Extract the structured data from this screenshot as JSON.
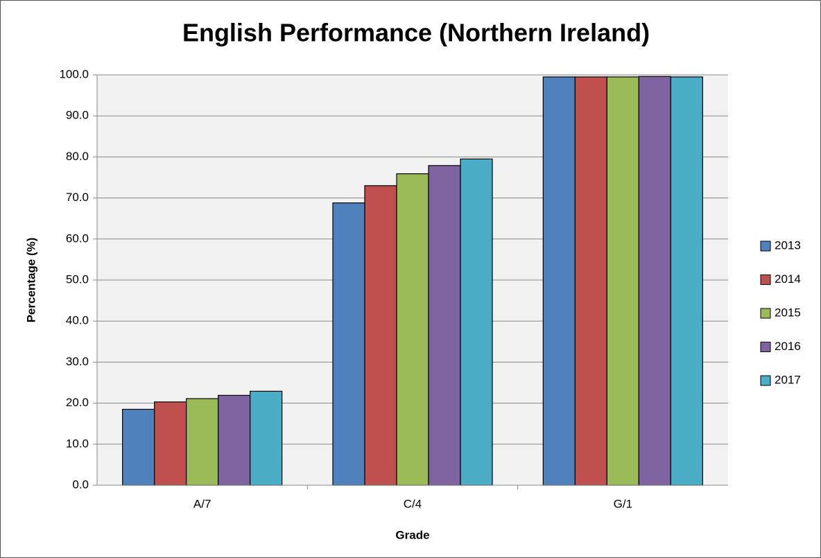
{
  "chart_data": {
    "type": "bar",
    "title": "English Performance (Northern Ireland)",
    "x_label": "Grade",
    "y_label": "Percentage (%)",
    "categories": [
      "A/7",
      "C/4",
      "G/1"
    ],
    "series": [
      {
        "name": "2013",
        "color": "#4f81bd",
        "values": [
          18.5,
          68.8,
          99.5
        ]
      },
      {
        "name": "2014",
        "color": "#c0504d",
        "values": [
          20.3,
          73.0,
          99.5
        ]
      },
      {
        "name": "2015",
        "color": "#9bbb59",
        "values": [
          21.1,
          75.9,
          99.5
        ]
      },
      {
        "name": "2016",
        "color": "#8064a2",
        "values": [
          21.9,
          77.9,
          99.6
        ]
      },
      {
        "name": "2017",
        "color": "#4bacc6",
        "values": [
          22.9,
          79.5,
          99.5
        ]
      }
    ],
    "ylim": [
      0,
      100
    ],
    "yticks": [
      {
        "value": 0,
        "label": "0.0"
      },
      {
        "value": 10,
        "label": "10.0"
      },
      {
        "value": 20,
        "label": "20.0"
      },
      {
        "value": 30,
        "label": "30.0"
      },
      {
        "value": 40,
        "label": "40.0"
      },
      {
        "value": 50,
        "label": "50.0"
      },
      {
        "value": 60,
        "label": "60.0"
      },
      {
        "value": 70,
        "label": "70.0"
      },
      {
        "value": 80,
        "label": "80.0"
      },
      {
        "value": 90,
        "label": "90.0"
      },
      {
        "value": 100,
        "label": "100.0"
      }
    ],
    "grid": true,
    "legend": "right"
  }
}
